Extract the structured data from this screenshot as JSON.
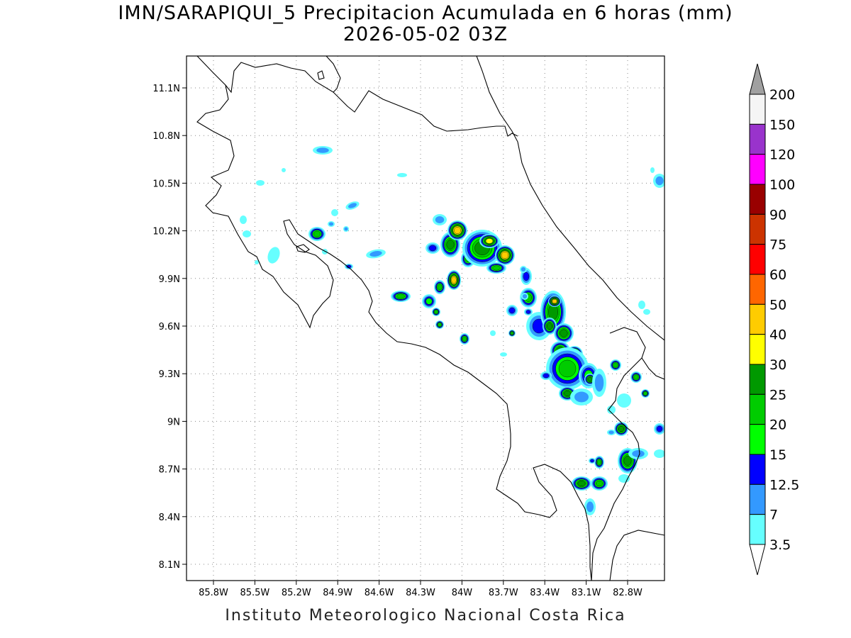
{
  "title": "IMN/SARAPIQUI_5 Precipitacion Acumulada en 6 horas (mm)",
  "subtitle": "2026-05-02 03Z",
  "footer": "Instituto Meteorologico Nacional Costa Rica",
  "map": {
    "lon_range": [
      -86.0,
      -83.0
    ],
    "lat_range": [
      8.0,
      11.2
    ],
    "lon_ticks": [
      "85.8W",
      "85.5W",
      "85.2W",
      "84.9W",
      "84.6W",
      "84.3W",
      "84W",
      "83.7W",
      "83.4W",
      "83.1W",
      "82.8W"
    ],
    "lat_ticks": [
      "11.1N",
      "10.8N",
      "10.5N",
      "10.2N",
      "9.9N",
      "9.6N",
      "9.3N",
      "9N",
      "8.7N",
      "8.4N",
      "8.1N"
    ],
    "grid": "dotted",
    "coastline_color": "#000000"
  },
  "colorbar": {
    "levels": [
      "200",
      "150",
      "120",
      "100",
      "90",
      "75",
      "60",
      "50",
      "40",
      "30",
      "25",
      "20",
      "15",
      "12.5",
      "7",
      "3.5"
    ],
    "colors": [
      "#a0a0a0",
      "#f5f5f5",
      "#9933cc",
      "#ff00ff",
      "#990000",
      "#cc3300",
      "#ff0000",
      "#ff6600",
      "#ffcc00",
      "#ffff00",
      "#009900",
      "#00cc00",
      "#00ff00",
      "#0000ff",
      "#3399ff",
      "#66ffff",
      "#ffffff"
    ]
  }
}
